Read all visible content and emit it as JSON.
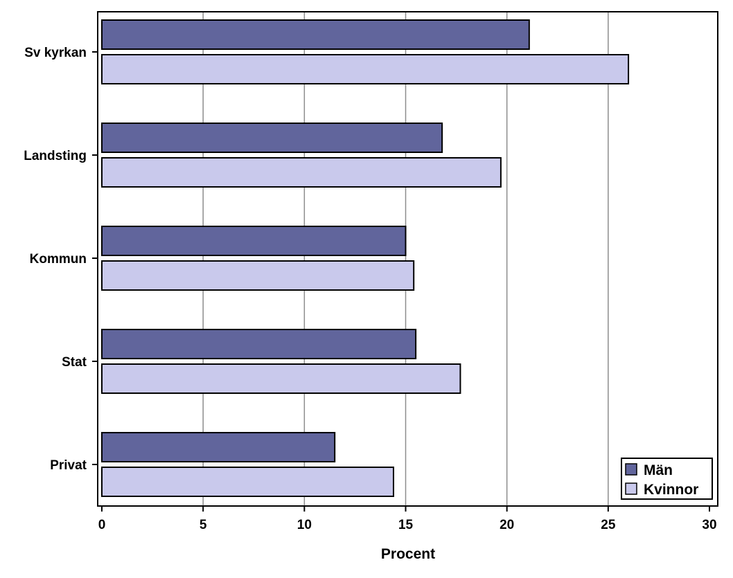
{
  "chart_data": {
    "type": "bar",
    "orientation": "horizontal",
    "categories": [
      "Sv kyrkan",
      "Landsting",
      "Kommun",
      "Stat",
      "Privat"
    ],
    "series": [
      {
        "name": "Män",
        "values": [
          21.1,
          16.8,
          15.0,
          15.5,
          11.5
        ]
      },
      {
        "name": "Kvinnor",
        "values": [
          26.0,
          19.7,
          15.4,
          17.7,
          14.4
        ]
      }
    ],
    "xlabel": "Procent",
    "ylabel": "",
    "xlim": [
      0,
      30
    ],
    "xticks": [
      "0",
      "5",
      "10",
      "15",
      "20",
      "25",
      "30"
    ],
    "grid": "vertical",
    "legend_position": "bottom-right",
    "colors": {
      "Män": "#61659c",
      "Kvinnor": "#c9c9ec",
      "grid": "#8c8c8c",
      "axis": "#000000"
    }
  }
}
